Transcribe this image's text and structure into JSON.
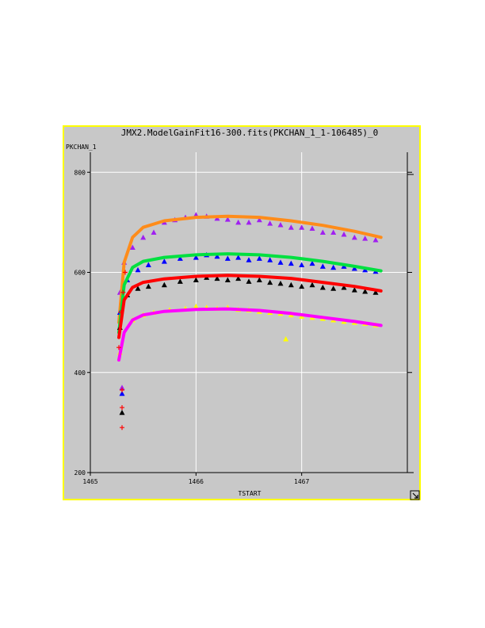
{
  "window": {
    "title": "JMX2.ModelGainFit16-300.fits(PKCHAN_1_1-106485)_0",
    "resize_icon": "resize-corner-icon"
  },
  "chart_data": {
    "type": "scatter",
    "title": "JMX2.ModelGainFit16-300.fits(PKCHAN_1_1-106485)_0",
    "xlabel": "TSTART",
    "ylabel": "PKCHAN_1",
    "xlim": [
      1465,
      1468
    ],
    "ylim": [
      200,
      840
    ],
    "x_ticks": [
      1465,
      1466,
      1467
    ],
    "x_tick_labels": [
      "1465",
      "1466",
      "1467"
    ],
    "y_ticks": [
      200,
      400,
      600,
      800
    ],
    "y_tick_labels": [
      "200",
      "400",
      "600",
      "800"
    ],
    "grid": true,
    "colors": {
      "background": "#c8c8c8",
      "frame": "#ffff00",
      "grid": "#ffffff"
    },
    "series": [
      {
        "kind": "scatter",
        "marker": "triangle",
        "color": "#a020f0",
        "points": [
          [
            1465.28,
            560
          ],
          [
            1465.32,
            620
          ],
          [
            1465.4,
            650
          ],
          [
            1465.5,
            670
          ],
          [
            1465.6,
            680
          ],
          [
            1465.7,
            700
          ],
          [
            1465.8,
            705
          ],
          [
            1465.9,
            710
          ],
          [
            1466.0,
            715
          ],
          [
            1466.1,
            712
          ],
          [
            1466.2,
            708
          ],
          [
            1466.3,
            706
          ],
          [
            1466.4,
            700
          ],
          [
            1466.5,
            700
          ],
          [
            1466.6,
            705
          ],
          [
            1466.7,
            698
          ],
          [
            1466.8,
            695
          ],
          [
            1466.9,
            690
          ],
          [
            1467.0,
            690
          ],
          [
            1467.1,
            688
          ],
          [
            1467.2,
            680
          ],
          [
            1467.3,
            680
          ],
          [
            1467.4,
            676
          ],
          [
            1467.5,
            670
          ],
          [
            1467.6,
            668
          ],
          [
            1467.7,
            665
          ],
          [
            1465.3,
            370
          ]
        ]
      },
      {
        "kind": "line",
        "color": "#ff8c1a",
        "points": [
          [
            1465.27,
            500
          ],
          [
            1465.32,
            620
          ],
          [
            1465.4,
            670
          ],
          [
            1465.5,
            690
          ],
          [
            1465.7,
            703
          ],
          [
            1466.0,
            710
          ],
          [
            1466.3,
            712
          ],
          [
            1466.6,
            710
          ],
          [
            1466.9,
            703
          ],
          [
            1467.2,
            694
          ],
          [
            1467.5,
            682
          ],
          [
            1467.75,
            670
          ]
        ]
      },
      {
        "kind": "scatter",
        "marker": "triangle",
        "color": "#0000ff",
        "points": [
          [
            1465.28,
            520
          ],
          [
            1465.35,
            585
          ],
          [
            1465.45,
            605
          ],
          [
            1465.55,
            615
          ],
          [
            1465.7,
            622
          ],
          [
            1465.85,
            628
          ],
          [
            1466.0,
            630
          ],
          [
            1466.1,
            635
          ],
          [
            1466.2,
            632
          ],
          [
            1466.3,
            628
          ],
          [
            1466.4,
            630
          ],
          [
            1466.5,
            625
          ],
          [
            1466.6,
            628
          ],
          [
            1466.7,
            625
          ],
          [
            1466.8,
            620
          ],
          [
            1466.9,
            618
          ],
          [
            1467.0,
            615
          ],
          [
            1467.1,
            618
          ],
          [
            1467.2,
            612
          ],
          [
            1467.3,
            610
          ],
          [
            1467.4,
            612
          ],
          [
            1467.5,
            608
          ],
          [
            1467.6,
            605
          ],
          [
            1467.7,
            602
          ],
          [
            1465.3,
            358
          ]
        ]
      },
      {
        "kind": "line",
        "color": "#00e040",
        "points": [
          [
            1465.27,
            480
          ],
          [
            1465.32,
            575
          ],
          [
            1465.4,
            610
          ],
          [
            1465.5,
            622
          ],
          [
            1465.7,
            630
          ],
          [
            1466.0,
            635
          ],
          [
            1466.3,
            637
          ],
          [
            1466.6,
            635
          ],
          [
            1466.9,
            630
          ],
          [
            1467.2,
            622
          ],
          [
            1467.5,
            612
          ],
          [
            1467.75,
            603
          ]
        ]
      },
      {
        "kind": "scatter",
        "marker": "triangle",
        "color": "#000000",
        "points": [
          [
            1465.28,
            490
          ],
          [
            1465.35,
            555
          ],
          [
            1465.45,
            568
          ],
          [
            1465.55,
            572
          ],
          [
            1465.7,
            575
          ],
          [
            1465.85,
            582
          ],
          [
            1466.0,
            585
          ],
          [
            1466.1,
            590
          ],
          [
            1466.2,
            588
          ],
          [
            1466.3,
            585
          ],
          [
            1466.4,
            588
          ],
          [
            1466.5,
            582
          ],
          [
            1466.6,
            585
          ],
          [
            1466.7,
            580
          ],
          [
            1466.8,
            578
          ],
          [
            1466.9,
            575
          ],
          [
            1467.0,
            572
          ],
          [
            1467.1,
            575
          ],
          [
            1467.2,
            570
          ],
          [
            1467.3,
            568
          ],
          [
            1467.4,
            570
          ],
          [
            1467.5,
            565
          ],
          [
            1467.6,
            562
          ],
          [
            1467.7,
            560
          ],
          [
            1465.3,
            320
          ]
        ]
      },
      {
        "kind": "line",
        "color": "#ff0000",
        "points": [
          [
            1465.27,
            470
          ],
          [
            1465.32,
            545
          ],
          [
            1465.4,
            570
          ],
          [
            1465.5,
            580
          ],
          [
            1465.7,
            587
          ],
          [
            1466.0,
            592
          ],
          [
            1466.3,
            594
          ],
          [
            1466.6,
            592
          ],
          [
            1466.9,
            588
          ],
          [
            1467.2,
            580
          ],
          [
            1467.5,
            572
          ],
          [
            1467.75,
            563
          ]
        ]
      },
      {
        "kind": "scatter",
        "marker": "triangle",
        "color": "#ffff00",
        "points": [
          [
            1465.28,
            440
          ],
          [
            1465.4,
            505
          ],
          [
            1465.5,
            515
          ],
          [
            1465.6,
            520
          ],
          [
            1465.75,
            525
          ],
          [
            1465.9,
            528
          ],
          [
            1466.0,
            532
          ],
          [
            1466.1,
            530
          ],
          [
            1466.2,
            528
          ],
          [
            1466.3,
            530
          ],
          [
            1466.4,
            526
          ],
          [
            1466.5,
            525
          ],
          [
            1466.6,
            522
          ],
          [
            1466.7,
            520
          ],
          [
            1466.8,
            518
          ],
          [
            1466.9,
            515
          ],
          [
            1467.0,
            512
          ],
          [
            1467.1,
            510
          ],
          [
            1467.2,
            508
          ],
          [
            1467.3,
            505
          ],
          [
            1467.4,
            502
          ],
          [
            1467.5,
            500
          ],
          [
            1467.6,
            498
          ],
          [
            1467.7,
            495
          ],
          [
            1466.85,
            467
          ]
        ]
      },
      {
        "kind": "line",
        "color": "#ff00ff",
        "points": [
          [
            1465.27,
            425
          ],
          [
            1465.32,
            480
          ],
          [
            1465.4,
            505
          ],
          [
            1465.5,
            515
          ],
          [
            1465.7,
            522
          ],
          [
            1466.0,
            526
          ],
          [
            1466.3,
            527
          ],
          [
            1466.6,
            524
          ],
          [
            1466.9,
            518
          ],
          [
            1467.2,
            510
          ],
          [
            1467.5,
            502
          ],
          [
            1467.75,
            494
          ]
        ]
      },
      {
        "kind": "scatter",
        "marker": "plus",
        "color": "#ff0000",
        "points": [
          [
            1465.3,
            290
          ],
          [
            1465.3,
            330
          ],
          [
            1465.3,
            365
          ],
          [
            1465.27,
            450
          ],
          [
            1465.29,
            520
          ],
          [
            1465.31,
            560
          ],
          [
            1465.33,
            600
          ]
        ]
      }
    ]
  }
}
